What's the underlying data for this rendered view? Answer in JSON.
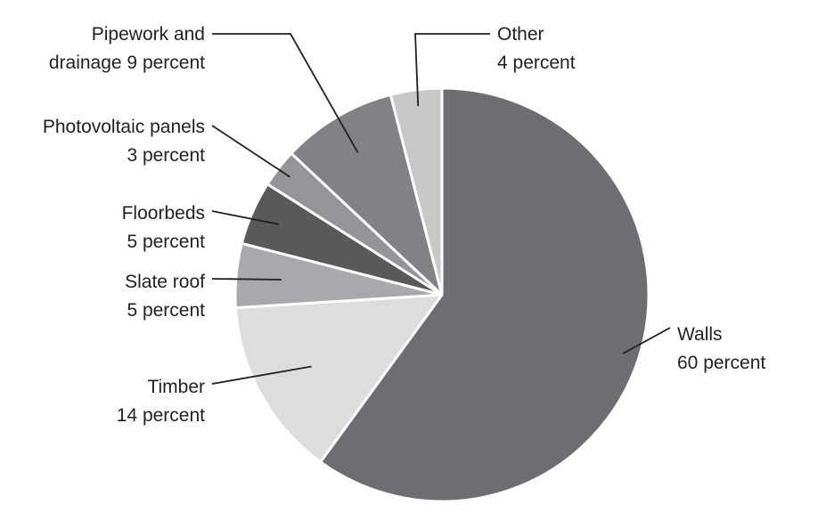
{
  "chart_data": {
    "type": "pie",
    "slices": [
      {
        "label": "Walls",
        "value_label": "60 percent",
        "value": 60,
        "color": "#6d6e71"
      },
      {
        "label": "Timber",
        "value_label": "14 percent",
        "value": 14,
        "color": "#dcdddf"
      },
      {
        "label": "Slate roof",
        "value_label": "5 percent",
        "value": 5,
        "color": "#a7a9ac"
      },
      {
        "label": "Floorbeds",
        "value_label": "5 percent",
        "value": 5,
        "color": "#58595b"
      },
      {
        "label": "Photovoltaic panels",
        "value_label": "3 percent",
        "value": 3,
        "color": "#939598"
      },
      {
        "label": "Pipework and",
        "label_line2": "drainage 9 percent",
        "value": 9,
        "color": "#808285"
      },
      {
        "label": "Other",
        "value_label": "4 percent",
        "value": 4,
        "color": "#c7c8ca"
      }
    ],
    "start": "12 o'clock",
    "direction": "clockwise",
    "legend": "none",
    "labels": "outside with leader lines"
  }
}
